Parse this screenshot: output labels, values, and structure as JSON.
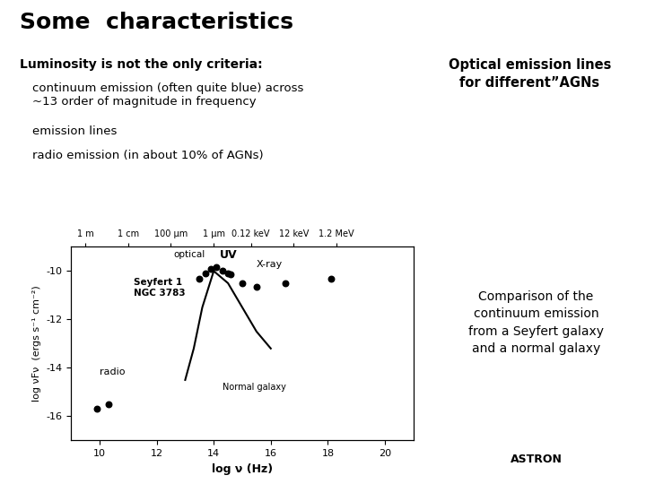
{
  "chart_data": {
    "type": "scatter",
    "title": "Some  characteristics",
    "x_label": "log ν (Hz)",
    "y_label": "log νFν  (ergs s⁻¹ cm⁻²)",
    "xlim": [
      9,
      21
    ],
    "ylim": [
      -17,
      -9
    ],
    "xticks": [
      10,
      12,
      14,
      16,
      18,
      20
    ],
    "yticks": [
      -16,
      -14,
      -12,
      -10
    ],
    "x2ticks": [
      {
        "value": 9.5,
        "label": "1 m"
      },
      {
        "value": 11.0,
        "label": "1 cm"
      },
      {
        "value": 12.5,
        "label": "100 μm"
      },
      {
        "value": 14.0,
        "label": "1 μm"
      },
      {
        "value": 15.3,
        "label": "0.12 keV"
      },
      {
        "value": 16.8,
        "label": "12 keV"
      },
      {
        "value": 18.3,
        "label": "1.2 MeV"
      }
    ],
    "series": [
      {
        "name": "Seyfert 1\nNGC 3783",
        "type": "scatter",
        "color": "#000000",
        "x": [
          9.9,
          10.3,
          13.5,
          13.7,
          13.9,
          14.1,
          14.3,
          14.5,
          14.6,
          15.0,
          15.5,
          16.5,
          18.1
        ],
        "values": [
          -15.7,
          -15.5,
          -10.3,
          -10.1,
          -9.9,
          -9.85,
          -10.0,
          -10.1,
          -10.15,
          -10.5,
          -10.65,
          -10.5,
          -10.3
        ]
      },
      {
        "name": "Normal galaxy",
        "type": "line",
        "color": "#000000",
        "x": [
          13.0,
          13.3,
          13.6,
          14.0,
          14.5,
          15.0,
          15.5,
          16.0
        ],
        "values": [
          -14.5,
          -13.2,
          -11.5,
          -10.0,
          -10.5,
          -11.5,
          -12.5,
          -13.2
        ]
      }
    ],
    "annotations": [
      "radio",
      "optical",
      "UV",
      "X-ray",
      "Luminosity is not the only criteria:",
      "continuum emission (often quite blue) across\n~13 order of magnitude in frequency",
      "emission lines",
      "radio emission (in about 10% of AGNs)",
      "Optical emission lines\nfor different”AGNs",
      "Comparison of the\ncontinuum emission\nfrom a Seyfert galaxy\nand a normal galaxy",
      "ASTRON"
    ]
  }
}
